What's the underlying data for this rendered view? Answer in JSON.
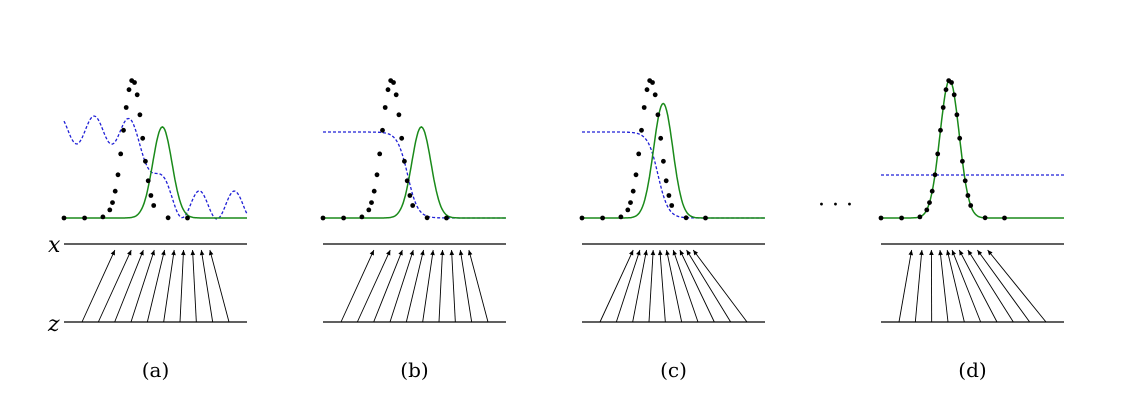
{
  "colors": {
    "data": "#000000",
    "generator": "#1a8a1a",
    "discriminator": "#1f1fd6",
    "axis": "#000000"
  },
  "axis_labels": {
    "x": "x",
    "z": "z"
  },
  "ellipsis": "· · ·",
  "panels": [
    {
      "caption": "(a)",
      "generator_shift": 1.3,
      "discriminator": "wavy"
    },
    {
      "caption": "(b)",
      "generator_shift": 1.3,
      "discriminator": "sigmoid"
    },
    {
      "caption": "(c)",
      "generator_shift": 0.55,
      "discriminator": "sigmoid"
    },
    {
      "caption": "(d)",
      "generator_shift": 0.0,
      "discriminator": "flat"
    }
  ]
}
